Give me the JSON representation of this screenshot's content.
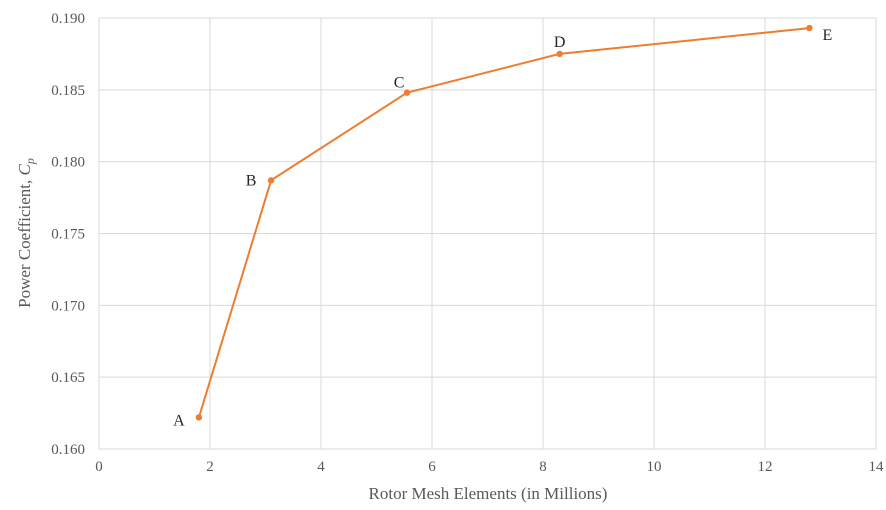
{
  "chart_data": {
    "type": "line",
    "xlabel": "Rotor Mesh Elements (in Millions)",
    "ylabel_main": "Power Coefficient, ",
    "ylabel_symbol": "C",
    "ylabel_subscript": "p",
    "xlim": [
      0,
      14
    ],
    "ylim": [
      0.16,
      0.19
    ],
    "xticks": [
      "0",
      "2",
      "4",
      "6",
      "8",
      "10",
      "12",
      "14"
    ],
    "yticks": [
      "0.160",
      "0.165",
      "0.170",
      "0.175",
      "0.180",
      "0.185",
      "0.190"
    ],
    "grid": true,
    "legend": "none",
    "series": [
      {
        "color": "#ed7d31",
        "points": [
          {
            "label": "A",
            "x": 1.8,
            "y": 0.1622
          },
          {
            "label": "B",
            "x": 3.1,
            "y": 0.1787
          },
          {
            "label": "C",
            "x": 5.55,
            "y": 0.1848
          },
          {
            "label": "D",
            "x": 8.3,
            "y": 0.1875
          },
          {
            "label": "E",
            "x": 12.8,
            "y": 0.1893
          }
        ]
      }
    ]
  }
}
